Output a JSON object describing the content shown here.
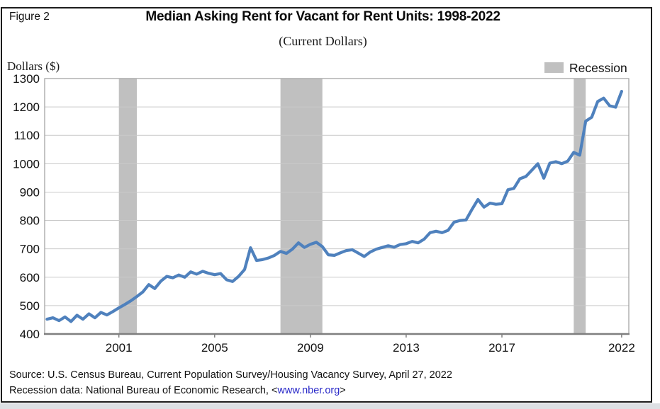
{
  "figure_label": "Figure 2",
  "title": "Median Asking Rent for Vacant for Rent Units: 1998-2022",
  "subtitle": "(Current Dollars)",
  "y_axis_title": "Dollars ($)",
  "legend": {
    "label": "Recession",
    "swatch_color": "#c0c0c0"
  },
  "source": {
    "line1": "Source: U.S. Census Bureau, Current Population Survey/Housing Vacancy Survey, April 27, 2022",
    "line2_prefix": "Recession data: National Bureau of Economic Research, <",
    "line2_link": "www.nber.org",
    "line2_suffix": ">"
  },
  "colors": {
    "line": "#4f81bd",
    "recession_band": "#c0c0c0",
    "gridline": "#c9c9c9",
    "plot_border": "#9e9e9e",
    "axis": "#7f7f7f",
    "tick_text": "#111111"
  },
  "chart_data": {
    "type": "line",
    "title": "Median Asking Rent for Vacant for Rent Units: 1998-2022",
    "subtitle": "(Current Dollars)",
    "ylabel": "Dollars ($)",
    "series_name": "Median asking rent (current dollars), quarterly",
    "x_start": 1998.0,
    "x_step_years": 0.25,
    "x_end": 2022.0,
    "values": [
      452,
      457,
      447,
      460,
      444,
      466,
      452,
      471,
      457,
      476,
      467,
      479,
      492,
      504,
      517,
      532,
      548,
      574,
      560,
      586,
      603,
      598,
      608,
      600,
      619,
      611,
      621,
      614,
      609,
      613,
      591,
      585,
      603,
      627,
      704,
      659,
      662,
      668,
      677,
      691,
      684,
      699,
      721,
      705,
      716,
      723,
      708,
      679,
      677,
      686,
      694,
      697,
      685,
      673,
      689,
      699,
      705,
      711,
      706,
      715,
      718,
      726,
      721,
      734,
      757,
      762,
      757,
      765,
      794,
      800,
      802,
      839,
      874,
      847,
      861,
      857,
      859,
      908,
      913,
      947,
      955,
      977,
      1000,
      949,
      1002,
      1007,
      1000,
      1009,
      1040,
      1030,
      1150,
      1164,
      1219,
      1231,
      1204,
      1199,
      1255
    ],
    "ylim": [
      400,
      1300
    ],
    "yticks": [
      400,
      500,
      600,
      700,
      800,
      900,
      1000,
      1100,
      1200,
      1300
    ],
    "xlim": [
      1997.9,
      2022.3
    ],
    "xticks": [
      2001,
      2005,
      2009,
      2013,
      2017,
      2022
    ],
    "grid": "horizontal",
    "legend_position": "top-right",
    "legend_entries": [
      "Recession"
    ],
    "recession_bands": [
      [
        2001.0,
        2001.75
      ],
      [
        2007.75,
        2009.5
      ],
      [
        2020.0,
        2020.5
      ]
    ]
  }
}
